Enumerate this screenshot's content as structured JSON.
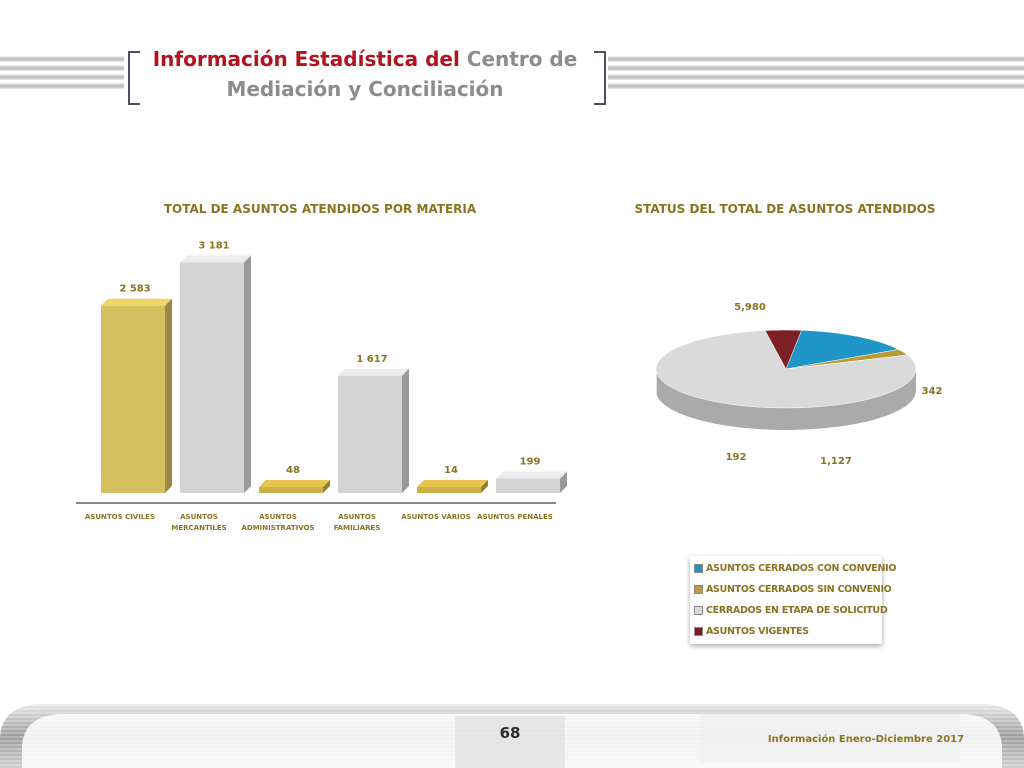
{
  "header": {
    "title_red": "Información Estadística del",
    "title_gray": " Centro de Mediación y Conciliación"
  },
  "chart_data": [
    {
      "type": "bar",
      "title": "TOTAL DE ASUNTOS ATENDIDOS POR MATERIA",
      "categories": [
        "ASUNTOS  CIVILES",
        "ASUNTOS MERCANTILES",
        "ASUNTOS ADMINISTRATIVOS",
        "ASUNTOS FAMILIARES",
        "ASUNTOS VARIOS",
        "ASUNTOS PENALES"
      ],
      "values": [
        2583,
        3181,
        48,
        1617,
        14,
        199
      ],
      "value_labels": [
        "2 583",
        "3 181",
        "48",
        "1 617",
        "14",
        "199"
      ],
      "colors": [
        "#d6bf5e",
        "#d4d4d4",
        "#cdb148",
        "#d4d4d4",
        "#cdb148",
        "#d4d4d4"
      ],
      "ylim": [
        0,
        3200
      ]
    },
    {
      "type": "pie",
      "title": "STATUS DEL TOTAL DE ASUNTOS ATENDIDOS",
      "labels": [
        "ASUNTOS CERRADOS CON CONVENIO",
        "ASUNTOS CERRADOS SIN CONVENIO",
        "CERRADOS EN ETAPA DE SOLICITUD",
        "ASUNTOS VIGENTES"
      ],
      "values": [
        1127,
        192,
        5980,
        342
      ],
      "value_labels": [
        "1,127",
        "192",
        "5,980",
        "342"
      ],
      "colors": [
        "#1f95c8",
        "#b89b35",
        "#dadada",
        "#7e1f24"
      ],
      "legend_position": "bottom-right"
    }
  ],
  "footer": {
    "page_number": "68",
    "note": "Información Enero-Diciembre 2017"
  }
}
